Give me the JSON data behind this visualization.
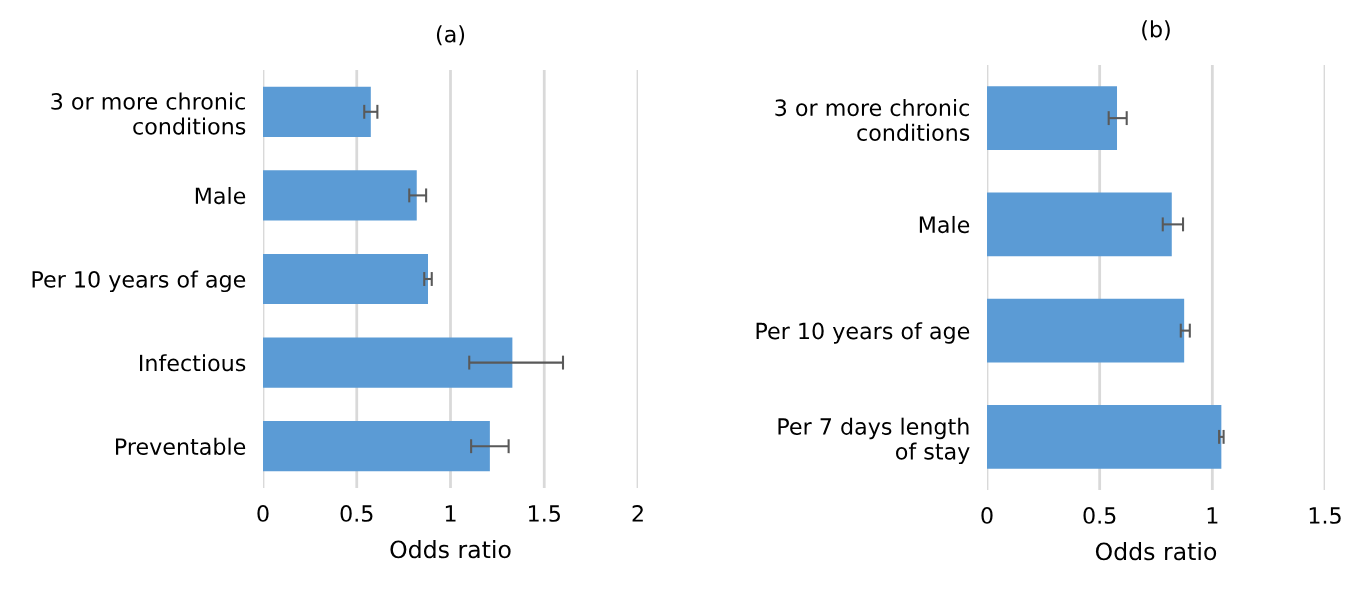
{
  "chart_data": [
    {
      "type": "bar",
      "orientation": "horizontal",
      "title": "(a)",
      "xlabel": "Odds ratio",
      "categories": [
        "3 or more chronic conditions",
        "Male",
        "Per 10 years of age",
        "Infectious",
        "Preventable"
      ],
      "color": "#5b9bd5",
      "values": [
        0.575,
        0.82,
        0.88,
        1.33,
        1.21
      ],
      "errors": [
        [
          0.54,
          0.61
        ],
        [
          0.78,
          0.87
        ],
        [
          0.86,
          0.9
        ],
        [
          1.1,
          1.6
        ],
        [
          1.11,
          1.31
        ]
      ],
      "xlim": [
        0,
        2
      ],
      "xticks": [
        0,
        0.5,
        1,
        1.5,
        2
      ],
      "grid": "x"
    },
    {
      "type": "bar",
      "orientation": "horizontal",
      "title": "(b)",
      "xlabel": "Odds ratio",
      "categories": [
        "3 or more chronic conditions",
        "Male",
        "Per 10 years of age",
        "Per 7 days length of stay"
      ],
      "color": "#5b9bd5",
      "values": [
        0.577,
        0.82,
        0.875,
        1.04
      ],
      "errors": [
        [
          0.54,
          0.62
        ],
        [
          0.78,
          0.87
        ],
        [
          0.86,
          0.9
        ],
        [
          1.03,
          1.05
        ]
      ],
      "xlim": [
        0,
        1.5
      ],
      "xticks": [
        0,
        0.5,
        1,
        1.5
      ],
      "grid": "x"
    }
  ]
}
